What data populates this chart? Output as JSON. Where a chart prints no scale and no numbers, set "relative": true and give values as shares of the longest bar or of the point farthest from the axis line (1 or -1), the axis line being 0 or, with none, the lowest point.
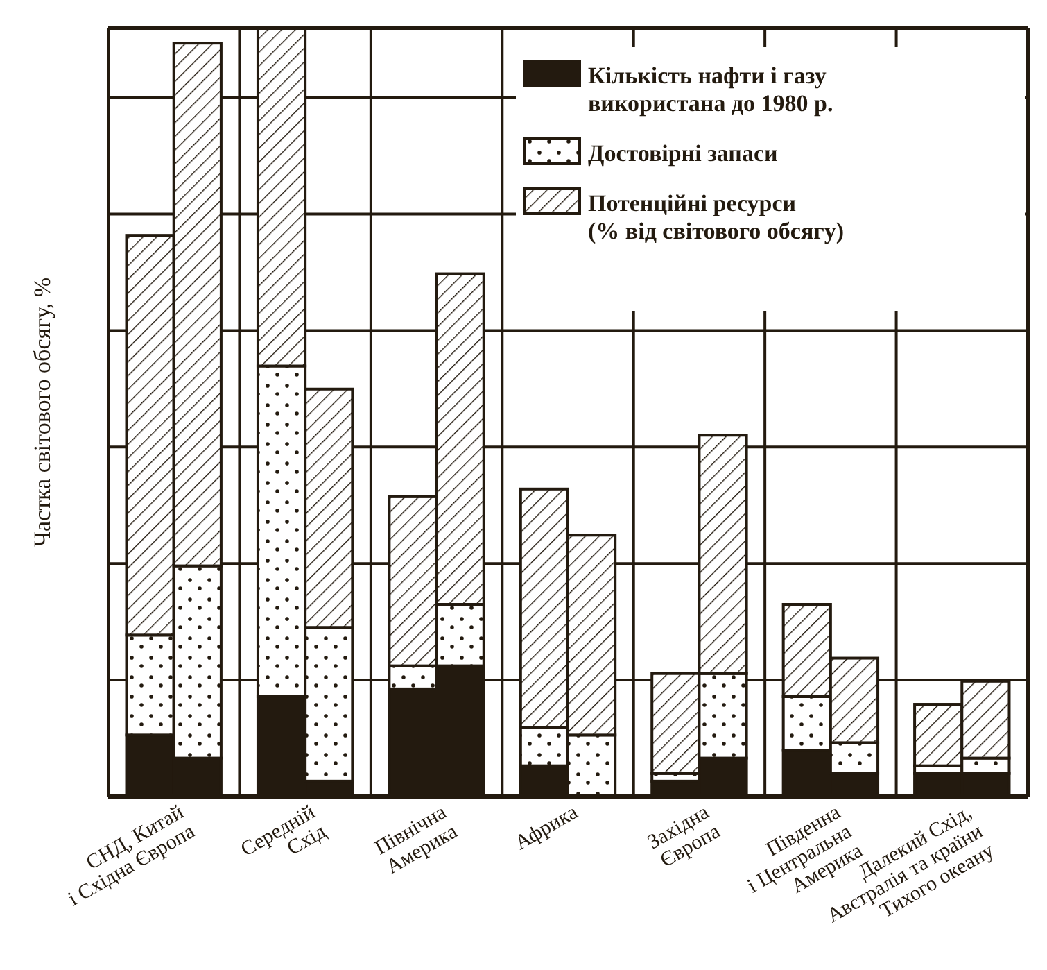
{
  "chart_data": {
    "type": "bar",
    "stacked": true,
    "relative": true,
    "grid": true,
    "legend": "top right",
    "ylabel": "Частка світового обсягу, %",
    "categories": [
      "СНД, Китай\nі Східна Європа",
      null,
      "Середній\nСхід",
      null,
      "Північна\nАмерика",
      null,
      "Африка",
      null,
      "Західна\nЄвропа",
      null,
      "Південна\nі Центральна\nАмерика",
      null,
      "Далекий Схід,\nАвстралія та країни\nТихого океану",
      null
    ],
    "series": [
      {
        "name": "Кількість нафти і газу\nвикористана до 1980 р.",
        "color": "#231a0f",
        "values": [
          0.08,
          0.05,
          0.13,
          0.02,
          0.14,
          0.17,
          0.04,
          0,
          0.02,
          0.05,
          0.06,
          0.03,
          0.03,
          0.03
        ]
      },
      {
        "name": "Достовірні запаси",
        "color": "#231a0f",
        "values": [
          0.13,
          0.25,
          0.43,
          0.2,
          0.03,
          0.08,
          0.05,
          0.08,
          0.01,
          0.11,
          0.07,
          0.04,
          0.01,
          0.02
        ]
      },
      {
        "name": "Потенційні ресурси\n(% від світового обсягу)",
        "color": "#231a0f",
        "values": [
          0.52,
          0.68,
          0.44,
          0.31,
          0.22,
          0.43,
          0.31,
          0.26,
          0.13,
          0.31,
          0.12,
          0.11,
          0.08,
          0.1
        ]
      }
    ]
  }
}
